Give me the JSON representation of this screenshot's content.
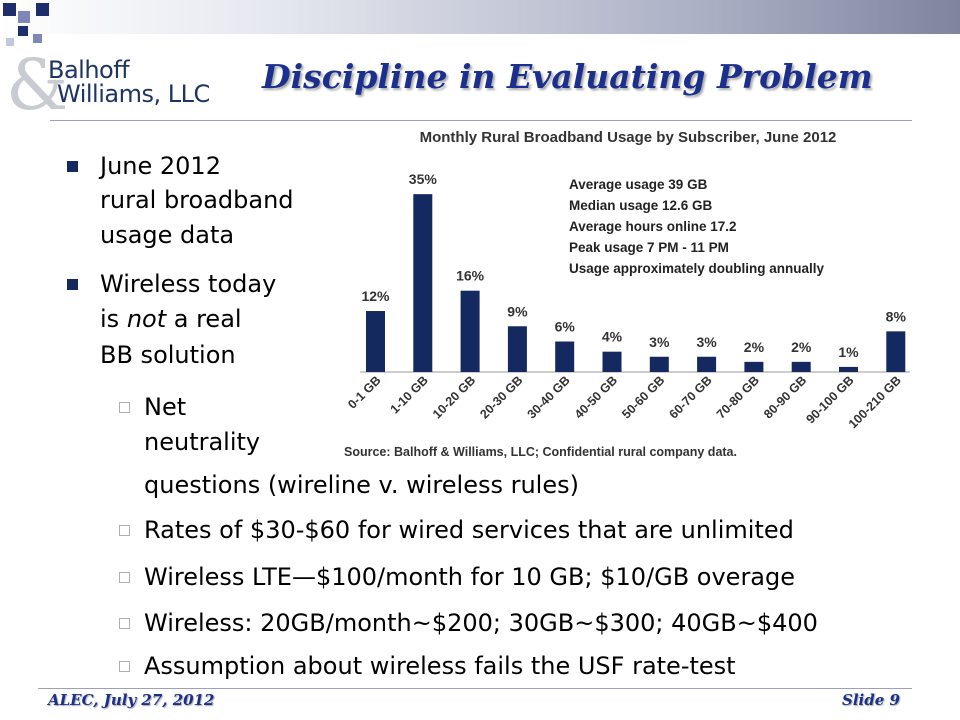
{
  "slide": {
    "title": "Discipline in Evaluating Problem",
    "logo": {
      "line1": "Balhoff",
      "line2": "Williams, LLC",
      "symbol": "&"
    },
    "footer_left": "ALEC, July 27, 2012",
    "footer_right": "Slide 9",
    "colors": {
      "title": "#1b2f8e",
      "bar": "#13295f",
      "bullet": "#13295f",
      "logo": "#1e3564"
    }
  },
  "bullets": [
    {
      "lines": [
        "June 2012",
        "rural broadband",
        "usage data"
      ]
    },
    {
      "lines_pre": [
        "Wireless today"
      ],
      "line2_a": "is ",
      "line2_em": "not",
      "line2_b": " a real",
      "lines_post": [
        "BB solution"
      ]
    }
  ],
  "subbullets": [
    {
      "lines": [
        "Net",
        "neutrality",
        "questions (wireline v. wireless rules)"
      ]
    },
    {
      "lines": [
        "Rates of $30-$60 for wired services that are unlimited"
      ]
    },
    {
      "lines": [
        "Wireless LTE—$100/month for 10 GB; $10/GB overage"
      ]
    },
    {
      "lines": [
        "Wireless: 20GB/month~$200; 30GB~$300; 40GB~$400"
      ]
    },
    {
      "lines": [
        "Assumption about wireless fails the USF rate-test"
      ]
    }
  ],
  "chart_data": {
    "type": "bar",
    "title": "Monthly Rural Broadband Usage by Subscriber, June 2012",
    "categories": [
      "0-1 GB",
      "1-10 GB",
      "10-20 GB",
      "20-30 GB",
      "30-40 GB",
      "40-50 GB",
      "50-60 GB",
      "60-70 GB",
      "70-80 GB",
      "80-90 GB",
      "90-100 GB",
      "100-210 GB"
    ],
    "values": [
      12,
      35,
      16,
      9,
      6,
      4,
      3,
      3,
      2,
      2,
      1,
      8
    ],
    "data_labels": [
      "12%",
      "35%",
      "16%",
      "9%",
      "6%",
      "4%",
      "3%",
      "3%",
      "2%",
      "2%",
      "1%",
      "8%"
    ],
    "ylim": [
      0,
      37
    ],
    "annotations": [
      "Average usage 39 GB",
      "Median usage 12.6 GB",
      "Average hours online 17.2",
      "Peak usage 7 PM - 11 PM",
      "Usage approximately doubling annually"
    ],
    "source": "Source: Balhoff & Williams, LLC; Confidential rural  company data."
  }
}
